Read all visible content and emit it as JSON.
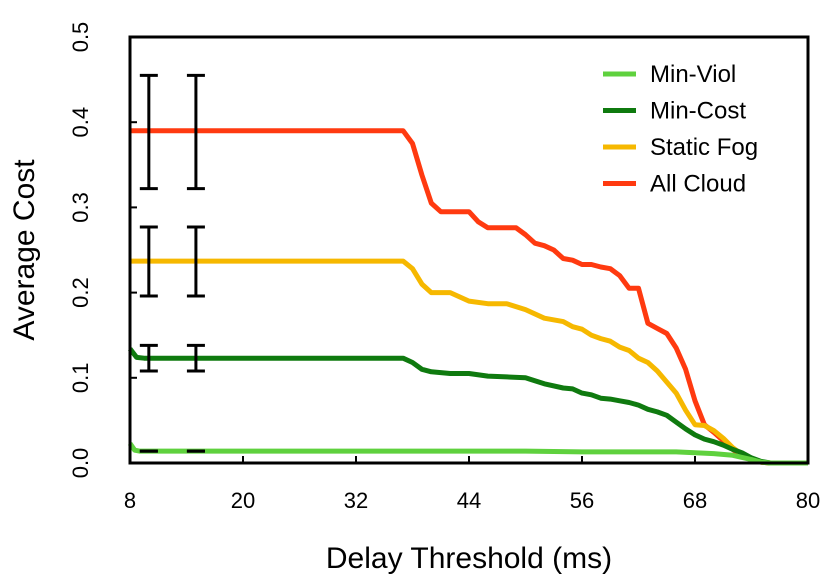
{
  "chart_data": {
    "type": "line",
    "title": "",
    "xlabel": "Delay Threshold (ms)",
    "ylabel": "Average Cost",
    "xlim": [
      8,
      80
    ],
    "ylim": [
      0,
      0.5
    ],
    "xticks": [
      "8",
      "20",
      "32",
      "44",
      "56",
      "68",
      "80"
    ],
    "yticks": [
      "0.0",
      "0.1",
      "0.2",
      "0.3",
      "0.4",
      "0.5"
    ],
    "legend_position": "top-right",
    "grid": false,
    "series": [
      {
        "name": "Min-Viol",
        "color": "#5fd13e",
        "x": [
          8,
          8.5,
          9,
          20,
          32,
          40,
          44,
          50,
          56,
          62,
          66,
          68,
          70,
          72,
          74,
          75,
          76,
          78,
          80
        ],
        "y": [
          0.023,
          0.015,
          0.014,
          0.014,
          0.014,
          0.014,
          0.014,
          0.014,
          0.013,
          0.013,
          0.013,
          0.012,
          0.011,
          0.009,
          0.004,
          0.001,
          0.0,
          0.0,
          0.0
        ]
      },
      {
        "name": "Min-Cost",
        "color": "#0f7a0f",
        "x": [
          8,
          8.7,
          9.5,
          20,
          32,
          37,
          38,
          39,
          40,
          42,
          44,
          46,
          48,
          50,
          52,
          54,
          55,
          56,
          57,
          58,
          59,
          60,
          61,
          62,
          63,
          64,
          65,
          66,
          67,
          68,
          69,
          70,
          71,
          72,
          73,
          74,
          75,
          76,
          78,
          80
        ],
        "y": [
          0.134,
          0.124,
          0.123,
          0.123,
          0.123,
          0.123,
          0.118,
          0.11,
          0.107,
          0.105,
          0.105,
          0.102,
          0.101,
          0.1,
          0.093,
          0.088,
          0.087,
          0.082,
          0.08,
          0.076,
          0.075,
          0.073,
          0.071,
          0.068,
          0.063,
          0.06,
          0.056,
          0.048,
          0.04,
          0.033,
          0.028,
          0.025,
          0.021,
          0.016,
          0.012,
          0.006,
          0.002,
          0.0,
          0.0,
          0.0
        ]
      },
      {
        "name": "Static Fog",
        "color": "#f6b800",
        "x": [
          8,
          20,
          32,
          37,
          38,
          39,
          40,
          42,
          44,
          46,
          48,
          50,
          52,
          54,
          55,
          56,
          57,
          58,
          59,
          60,
          61,
          62,
          63,
          64,
          65,
          66,
          67,
          68,
          69,
          70,
          71,
          72,
          73,
          74,
          75,
          76,
          78,
          80
        ],
        "y": [
          0.237,
          0.237,
          0.237,
          0.237,
          0.228,
          0.21,
          0.2,
          0.2,
          0.19,
          0.187,
          0.187,
          0.18,
          0.17,
          0.166,
          0.16,
          0.157,
          0.15,
          0.146,
          0.143,
          0.136,
          0.132,
          0.123,
          0.118,
          0.108,
          0.095,
          0.082,
          0.062,
          0.045,
          0.044,
          0.038,
          0.029,
          0.018,
          0.01,
          0.004,
          0.001,
          0.0,
          0.0,
          0.0
        ]
      },
      {
        "name": "All Cloud",
        "color": "#ff3a10",
        "x": [
          8,
          20,
          32,
          37,
          38,
          39,
          40,
          41,
          42,
          43,
          44,
          45,
          46,
          48,
          49,
          50,
          51,
          52,
          53,
          54,
          55,
          56,
          57,
          58,
          59,
          60,
          61,
          62,
          63,
          64,
          65,
          66,
          67,
          68,
          69,
          70,
          71,
          72,
          73,
          74,
          75,
          76,
          78,
          80
        ],
        "y": [
          0.39,
          0.39,
          0.39,
          0.39,
          0.375,
          0.338,
          0.305,
          0.295,
          0.295,
          0.295,
          0.295,
          0.283,
          0.276,
          0.276,
          0.276,
          0.268,
          0.258,
          0.255,
          0.25,
          0.24,
          0.238,
          0.233,
          0.233,
          0.23,
          0.228,
          0.22,
          0.205,
          0.205,
          0.164,
          0.158,
          0.152,
          0.135,
          0.11,
          0.073,
          0.045,
          0.036,
          0.026,
          0.016,
          0.008,
          0.004,
          0.001,
          0.0,
          0.0,
          0.0
        ]
      }
    ],
    "error_bars": [
      {
        "series": "All Cloud",
        "x": 10,
        "low": 0.322,
        "high": 0.455
      },
      {
        "series": "All Cloud",
        "x": 15,
        "low": 0.322,
        "high": 0.455
      },
      {
        "series": "Static Fog",
        "x": 10,
        "low": 0.196,
        "high": 0.277
      },
      {
        "series": "Static Fog",
        "x": 15,
        "low": 0.196,
        "high": 0.277
      },
      {
        "series": "Min-Cost",
        "x": 10,
        "low": 0.108,
        "high": 0.138
      },
      {
        "series": "Min-Cost",
        "x": 15,
        "low": 0.108,
        "high": 0.138
      },
      {
        "series": "Min-Viol",
        "x": 10,
        "low": 0.014,
        "high": 0.014
      },
      {
        "series": "Min-Viol",
        "x": 15,
        "low": 0.014,
        "high": 0.014
      }
    ]
  }
}
